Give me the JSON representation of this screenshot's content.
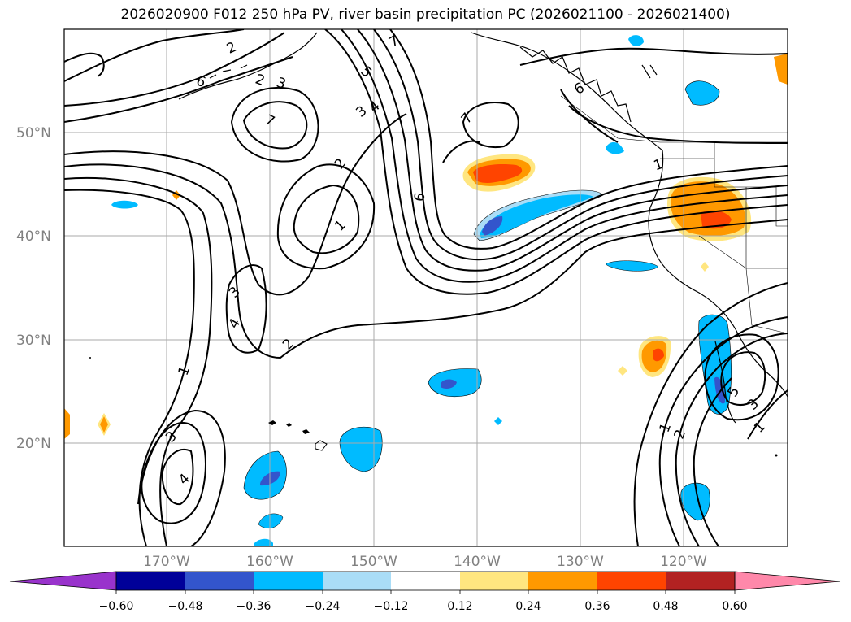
{
  "title": "2026020900 F012 250 hPa PV, river basin precipitation PC (2026021100 - 2026021400)",
  "latitudes": [
    "50°N",
    "40°N",
    "30°N",
    "20°N"
  ],
  "longitudes": [
    "170°W",
    "160°W",
    "150°W",
    "140°W",
    "130°W",
    "120°W"
  ],
  "colorbar": {
    "ticks": [
      "−0.60",
      "−0.48",
      "−0.36",
      "−0.24",
      "−0.12",
      "0.12",
      "0.24",
      "0.36",
      "0.48",
      "0.60"
    ],
    "colors": [
      "#9933cc",
      "#000099",
      "#3355cc",
      "#00bbff",
      "#aaddf7",
      "#ffffff",
      "#ffe680",
      "#ff9900",
      "#ff4400",
      "#b22222",
      "#ff88aa"
    ]
  },
  "contour_labels": [
    "2",
    "6",
    "2",
    "3",
    "7",
    "5",
    "3",
    "4",
    "7",
    "7",
    "6",
    "2",
    "1",
    "6",
    "3",
    "4",
    "2",
    "1",
    "3",
    "4",
    "1",
    "5",
    "3",
    "1",
    "2",
    "1"
  ]
}
